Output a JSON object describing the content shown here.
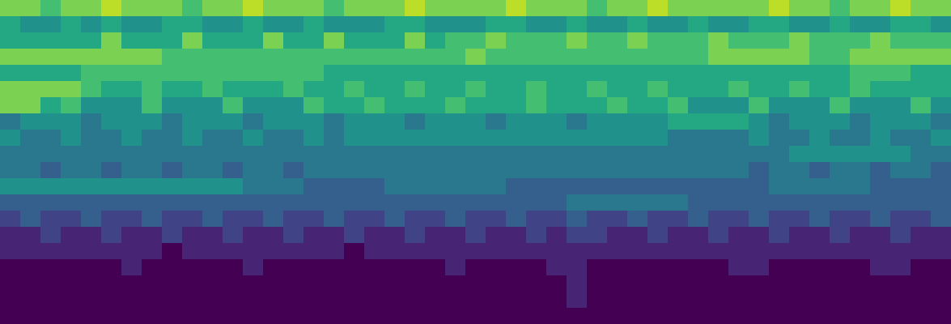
{
  "chart_data": {
    "type": "heatmap",
    "color": "Viridis",
    "tick_labels": false,
    "grid": false,
    "xlim": [
      -0.5,
      46.5
    ],
    "ylim": [
      19.5,
      -0.5
    ],
    "zlim": [
      0,
      10
    ],
    "z": [
      [
        8,
        8,
        7,
        8,
        8,
        9,
        8,
        8,
        8,
        7,
        8,
        8,
        9,
        8,
        8,
        8,
        7,
        8,
        8,
        8,
        9,
        8,
        8,
        8,
        8,
        9,
        8,
        8,
        8,
        7,
        8,
        8,
        9,
        8,
        8,
        8,
        8,
        8,
        9,
        8,
        8,
        7,
        8,
        8,
        9,
        8,
        8
      ],
      [
        6,
        5,
        5,
        6,
        5,
        6,
        5,
        5,
        6,
        6,
        5,
        5,
        6,
        5,
        5,
        6,
        5,
        5,
        5,
        6,
        6,
        5,
        5,
        5,
        6,
        6,
        5,
        5,
        6,
        5,
        5,
        6,
        5,
        5,
        6,
        5,
        5,
        6,
        6,
        5,
        5,
        6,
        5,
        5,
        6,
        6,
        5
      ],
      [
        6,
        6,
        6,
        6,
        6,
        8,
        6,
        6,
        6,
        8,
        6,
        6,
        6,
        8,
        6,
        6,
        8,
        6,
        6,
        6,
        8,
        6,
        7,
        7,
        8,
        7,
        7,
        7,
        8,
        7,
        7,
        8,
        7,
        7,
        7,
        8,
        7,
        7,
        7,
        8,
        7,
        7,
        7,
        8,
        7,
        7,
        7
      ],
      [
        8,
        8,
        8,
        8,
        8,
        8,
        8,
        8,
        7,
        7,
        7,
        7,
        7,
        7,
        7,
        7,
        7,
        7,
        7,
        7,
        7,
        7,
        7,
        8,
        7,
        7,
        7,
        7,
        7,
        7,
        7,
        7,
        7,
        7,
        7,
        8,
        8,
        8,
        8,
        8,
        7,
        7,
        8,
        8,
        8,
        8,
        8
      ],
      [
        6,
        6,
        6,
        6,
        7,
        7,
        7,
        7,
        7,
        7,
        7,
        7,
        7,
        7,
        7,
        7,
        6,
        6,
        6,
        6,
        6,
        6,
        6,
        6,
        6,
        6,
        6,
        6,
        6,
        6,
        6,
        6,
        6,
        6,
        6,
        6,
        6,
        6,
        6,
        6,
        6,
        6,
        7,
        7,
        7,
        6,
        6
      ],
      [
        8,
        8,
        8,
        8,
        7,
        6,
        6,
        7,
        6,
        6,
        7,
        6,
        6,
        6,
        7,
        6,
        6,
        7,
        6,
        6,
        7,
        6,
        6,
        7,
        6,
        6,
        7,
        6,
        6,
        7,
        6,
        6,
        7,
        6,
        6,
        6,
        7,
        6,
        6,
        7,
        6,
        6,
        7,
        6,
        6,
        6,
        6
      ],
      [
        8,
        8,
        6,
        7,
        5,
        5,
        5,
        7,
        5,
        5,
        5,
        7,
        5,
        5,
        5,
        7,
        6,
        6,
        7,
        6,
        6,
        6,
        7,
        6,
        6,
        6,
        7,
        6,
        6,
        6,
        7,
        6,
        6,
        7,
        5,
        5,
        5,
        7,
        5,
        5,
        5,
        7,
        5,
        5,
        5,
        7,
        5
      ],
      [
        4,
        5,
        5,
        5,
        4,
        5,
        5,
        5,
        4,
        5,
        5,
        5,
        4,
        5,
        5,
        5,
        4,
        5,
        5,
        5,
        4,
        5,
        5,
        5,
        4,
        5,
        5,
        5,
        4,
        5,
        5,
        5,
        5,
        6,
        6,
        6,
        6,
        5,
        4,
        5,
        5,
        5,
        4,
        5,
        5,
        5,
        4
      ],
      [
        5,
        4,
        4,
        5,
        4,
        4,
        5,
        4,
        4,
        5,
        4,
        4,
        5,
        4,
        4,
        5,
        4,
        5,
        5,
        5,
        5,
        5,
        5,
        5,
        5,
        5,
        5,
        5,
        5,
        5,
        5,
        5,
        5,
        4,
        4,
        4,
        4,
        5,
        4,
        4,
        5,
        4,
        4,
        5,
        4,
        4,
        5
      ],
      [
        4,
        4,
        4,
        4,
        4,
        4,
        4,
        4,
        4,
        4,
        4,
        4,
        4,
        4,
        4,
        4,
        4,
        4,
        4,
        4,
        4,
        4,
        4,
        4,
        4,
        4,
        4,
        4,
        4,
        4,
        4,
        4,
        4,
        4,
        4,
        4,
        4,
        4,
        4,
        5,
        5,
        5,
        5,
        5,
        5,
        4,
        4
      ],
      [
        4,
        4,
        3,
        4,
        4,
        3,
        4,
        4,
        3,
        4,
        4,
        3,
        4,
        4,
        3,
        4,
        4,
        4,
        4,
        4,
        4,
        4,
        4,
        4,
        4,
        4,
        4,
        4,
        4,
        4,
        4,
        4,
        4,
        4,
        4,
        4,
        4,
        3,
        4,
        4,
        3,
        4,
        4,
        3,
        4,
        4,
        3
      ],
      [
        5,
        5,
        5,
        5,
        5,
        5,
        5,
        5,
        5,
        5,
        5,
        5,
        4,
        4,
        4,
        3,
        3,
        3,
        3,
        4,
        4,
        4,
        4,
        4,
        4,
        3,
        3,
        3,
        3,
        3,
        3,
        3,
        3,
        3,
        3,
        3,
        3,
        3,
        4,
        4,
        4,
        4,
        4,
        3,
        3,
        3,
        3
      ],
      [
        3,
        3,
        3,
        3,
        3,
        3,
        3,
        3,
        3,
        3,
        3,
        3,
        3,
        3,
        3,
        3,
        3,
        3,
        3,
        3,
        3,
        3,
        3,
        3,
        3,
        3,
        3,
        3,
        4,
        4,
        4,
        4,
        4,
        4,
        3,
        3,
        3,
        3,
        3,
        3,
        3,
        3,
        3,
        3,
        3,
        3,
        3
      ],
      [
        2,
        3,
        2,
        2,
        3,
        2,
        2,
        3,
        2,
        2,
        3,
        2,
        2,
        3,
        2,
        2,
        3,
        2,
        2,
        3,
        2,
        2,
        3,
        2,
        2,
        3,
        2,
        2,
        3,
        2,
        2,
        3,
        2,
        2,
        3,
        2,
        2,
        3,
        2,
        2,
        3,
        2,
        2,
        3,
        2,
        2,
        3
      ],
      [
        1,
        1,
        2,
        1,
        1,
        2,
        1,
        1,
        2,
        1,
        1,
        2,
        1,
        1,
        2,
        1,
        1,
        2,
        1,
        1,
        2,
        1,
        1,
        2,
        1,
        1,
        2,
        1,
        2,
        2,
        1,
        1,
        2,
        1,
        1,
        2,
        1,
        1,
        2,
        1,
        1,
        2,
        1,
        1,
        2,
        1,
        1
      ],
      [
        1,
        1,
        1,
        1,
        1,
        1,
        1,
        1,
        0,
        1,
        1,
        1,
        1,
        1,
        1,
        1,
        1,
        0,
        1,
        1,
        1,
        1,
        1,
        1,
        1,
        1,
        1,
        1,
        1,
        1,
        1,
        1,
        1,
        1,
        1,
        1,
        1,
        1,
        1,
        1,
        1,
        1,
        1,
        1,
        1,
        1,
        1
      ],
      [
        0,
        0,
        0,
        0,
        0,
        0,
        1,
        0,
        0,
        0,
        0,
        0,
        1,
        0,
        0,
        0,
        0,
        0,
        0,
        0,
        0,
        0,
        1,
        0,
        0,
        0,
        0,
        1,
        1,
        0,
        0,
        0,
        0,
        0,
        0,
        0,
        1,
        1,
        0,
        0,
        0,
        0,
        0,
        1,
        1,
        0,
        0
      ],
      [
        0,
        0,
        0,
        0,
        0,
        0,
        0,
        0,
        0,
        0,
        0,
        0,
        0,
        0,
        0,
        0,
        0,
        0,
        0,
        0,
        0,
        0,
        0,
        0,
        0,
        0,
        0,
        0,
        1,
        0,
        0,
        0,
        0,
        0,
        0,
        0,
        0,
        0,
        0,
        0,
        0,
        0,
        0,
        0,
        0,
        0,
        0
      ],
      [
        0,
        0,
        0,
        0,
        0,
        0,
        0,
        0,
        0,
        0,
        0,
        0,
        0,
        0,
        0,
        0,
        0,
        0,
        0,
        0,
        0,
        0,
        0,
        0,
        0,
        0,
        0,
        0,
        1,
        0,
        0,
        0,
        0,
        0,
        0,
        0,
        0,
        0,
        0,
        0,
        0,
        0,
        0,
        0,
        0,
        0,
        0
      ],
      [
        0,
        0,
        0,
        0,
        0,
        0,
        0,
        0,
        0,
        0,
        0,
        0,
        0,
        0,
        0,
        0,
        0,
        0,
        0,
        0,
        0,
        0,
        0,
        0,
        0,
        0,
        0,
        0,
        0,
        0,
        0,
        0,
        0,
        0,
        0,
        0,
        0,
        0,
        0,
        0,
        0,
        0,
        0,
        0,
        0,
        0,
        0
      ]
    ]
  }
}
